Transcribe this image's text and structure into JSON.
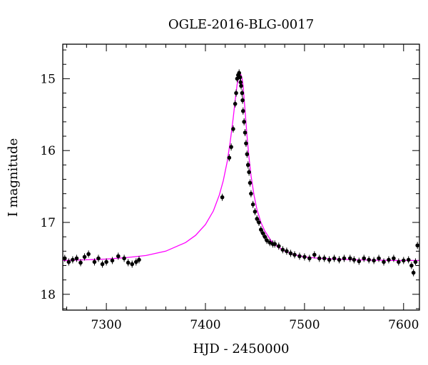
{
  "chart_data": {
    "type": "scatter",
    "title": "OGLE-2016-BLG-0017",
    "xlabel": "HJD - 2450000",
    "ylabel": "I magnitude",
    "xlim": [
      7256,
      7616
    ],
    "ylim": [
      18.22,
      14.52
    ],
    "y_inverted": true,
    "x_ticks": [
      7300,
      7400,
      7500,
      7600
    ],
    "x_tick_labels": [
      "7300",
      "7400",
      "7500",
      "7600"
    ],
    "y_ticks": [
      15,
      16,
      17,
      18
    ],
    "y_tick_labels": [
      "15",
      "16",
      "17",
      "18"
    ],
    "x_minor_step": 20,
    "y_minor_step": 0.2,
    "grid": false,
    "series": [
      {
        "kind": "data",
        "color": "#000000",
        "error_bars": true,
        "x": [
          7258,
          7262,
          7266,
          7270,
          7274,
          7278,
          7282,
          7288,
          7292,
          7296,
          7300,
          7306,
          7312,
          7318,
          7322,
          7326,
          7330,
          7333,
          7417,
          7424,
          7426,
          7428,
          7430,
          7431,
          7432,
          7433,
          7434,
          7435,
          7435.5,
          7436,
          7437,
          7437.5,
          7438,
          7439,
          7440,
          7441,
          7442,
          7443,
          7444,
          7445,
          7446,
          7448,
          7450,
          7452,
          7454,
          7456,
          7458,
          7460,
          7462,
          7465,
          7468,
          7470,
          7474,
          7478,
          7482,
          7486,
          7490,
          7495,
          7500,
          7505,
          7510,
          7515,
          7520,
          7525,
          7530,
          7535,
          7540,
          7546,
          7550,
          7555,
          7560,
          7565,
          7570,
          7575,
          7580,
          7585,
          7590,
          7595,
          7600,
          7605,
          7608,
          7610,
          7612,
          7614
        ],
        "y": [
          17.5,
          17.55,
          17.52,
          17.5,
          17.56,
          17.48,
          17.44,
          17.55,
          17.5,
          17.58,
          17.55,
          17.53,
          17.47,
          17.5,
          17.56,
          17.58,
          17.55,
          17.52,
          16.65,
          16.1,
          15.95,
          15.7,
          15.35,
          15.2,
          15.0,
          14.95,
          14.92,
          14.98,
          15.05,
          15.1,
          15.2,
          15.3,
          15.45,
          15.6,
          15.75,
          15.9,
          16.05,
          16.2,
          16.3,
          16.45,
          16.6,
          16.75,
          16.85,
          16.95,
          17.0,
          17.1,
          17.15,
          17.2,
          17.25,
          17.28,
          17.3,
          17.3,
          17.33,
          17.38,
          17.4,
          17.43,
          17.45,
          17.47,
          17.48,
          17.5,
          17.45,
          17.5,
          17.5,
          17.52,
          17.5,
          17.52,
          17.5,
          17.5,
          17.52,
          17.54,
          17.5,
          17.52,
          17.53,
          17.5,
          17.55,
          17.52,
          17.5,
          17.55,
          17.53,
          17.52,
          17.6,
          17.7,
          17.55,
          17.32
        ]
      },
      {
        "kind": "model",
        "color": "#ff00ff",
        "x": [
          7256,
          7280,
          7300,
          7320,
          7340,
          7360,
          7380,
          7390,
          7400,
          7408,
          7414,
          7418,
          7422,
          7425,
          7428,
          7430,
          7432,
          7434,
          7435,
          7436,
          7437,
          7438,
          7440,
          7442,
          7444,
          7446,
          7449,
          7452,
          7456,
          7460,
          7466,
          7472,
          7480,
          7490,
          7500,
          7515,
          7530,
          7550,
          7570,
          7590,
          7616
        ],
        "y": [
          17.53,
          17.52,
          17.51,
          17.49,
          17.46,
          17.4,
          17.28,
          17.18,
          17.03,
          16.84,
          16.62,
          16.42,
          16.15,
          15.88,
          15.55,
          15.3,
          15.08,
          14.96,
          14.93,
          14.95,
          15.0,
          15.1,
          15.45,
          15.8,
          16.1,
          16.35,
          16.62,
          16.82,
          17.0,
          17.12,
          17.25,
          17.33,
          17.4,
          17.45,
          17.48,
          17.5,
          17.51,
          17.52,
          17.525,
          17.53,
          17.53
        ]
      }
    ]
  }
}
